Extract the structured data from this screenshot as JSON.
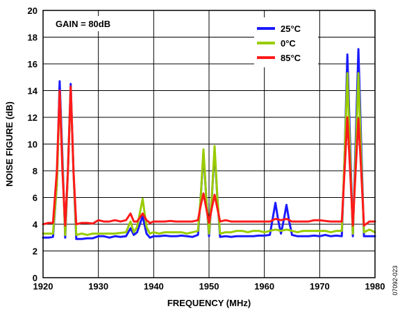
{
  "chart_data": {
    "type": "line",
    "xlabel": "FREQUENCY (MHz)",
    "ylabel": "NOISE FIGURE (dB)",
    "xlim": [
      1920,
      1980
    ],
    "ylim": [
      0,
      20
    ],
    "xticks": [
      1920,
      1930,
      1940,
      1950,
      1960,
      1970,
      1980
    ],
    "yticks": [
      0,
      2,
      4,
      6,
      8,
      10,
      12,
      14,
      16,
      18,
      20
    ],
    "grid": true,
    "legend_position": "top-right",
    "annotation": "GAIN = 80dB",
    "figure_code": "07092-023",
    "series": [
      {
        "name": "25°C",
        "color": "#1a1aff",
        "points": [
          [
            1920,
            3.0
          ],
          [
            1921,
            3.0
          ],
          [
            1921.8,
            3.05
          ],
          [
            1922.5,
            7
          ],
          [
            1923,
            14.7
          ],
          [
            1923.5,
            9
          ],
          [
            1924,
            3.0
          ],
          [
            1924.5,
            8
          ],
          [
            1925,
            14.5
          ],
          [
            1925.5,
            8
          ],
          [
            1926,
            2.9
          ],
          [
            1927,
            2.9
          ],
          [
            1928,
            2.95
          ],
          [
            1929,
            2.95
          ],
          [
            1930,
            3.1
          ],
          [
            1931,
            3.1
          ],
          [
            1932,
            3.0
          ],
          [
            1933,
            3.1
          ],
          [
            1934,
            3.05
          ],
          [
            1935,
            3.1
          ],
          [
            1935.8,
            3.7
          ],
          [
            1936.4,
            3.2
          ],
          [
            1937,
            3.4
          ],
          [
            1938,
            4.6
          ],
          [
            1938.7,
            3.3
          ],
          [
            1939.3,
            3.0
          ],
          [
            1940,
            3.1
          ],
          [
            1941,
            3.1
          ],
          [
            1942,
            3.15
          ],
          [
            1943,
            3.1
          ],
          [
            1944,
            3.1
          ],
          [
            1945,
            3.15
          ],
          [
            1946,
            3.1
          ],
          [
            1947,
            3.05
          ],
          [
            1948,
            3.2
          ],
          [
            1948.5,
            6
          ],
          [
            1949,
            9.3
          ],
          [
            1949.5,
            6
          ],
          [
            1950,
            3.1
          ],
          [
            1950.5,
            6
          ],
          [
            1951,
            9.5
          ],
          [
            1951.5,
            6
          ],
          [
            1952,
            3.05
          ],
          [
            1953,
            3.1
          ],
          [
            1954,
            3.05
          ],
          [
            1955,
            3.1
          ],
          [
            1956,
            3.1
          ],
          [
            1957,
            3.1
          ],
          [
            1958,
            3.1
          ],
          [
            1959,
            3.15
          ],
          [
            1960,
            3.15
          ],
          [
            1961,
            3.2
          ],
          [
            1961.5,
            4.4
          ],
          [
            1962,
            5.6
          ],
          [
            1962.5,
            4.3
          ],
          [
            1963,
            3.3
          ],
          [
            1963.5,
            4.3
          ],
          [
            1964,
            5.45
          ],
          [
            1964.5,
            4.2
          ],
          [
            1965,
            3.2
          ],
          [
            1966,
            3.1
          ],
          [
            1967,
            3.1
          ],
          [
            1968,
            3.1
          ],
          [
            1969,
            3.15
          ],
          [
            1970,
            3.1
          ],
          [
            1971,
            3.2
          ],
          [
            1972,
            3.1
          ],
          [
            1973,
            3.15
          ],
          [
            1974,
            3.1
          ],
          [
            1974.5,
            9
          ],
          [
            1975,
            16.7
          ],
          [
            1975.5,
            10
          ],
          [
            1976,
            3.1
          ],
          [
            1976.5,
            10
          ],
          [
            1977,
            17.1
          ],
          [
            1977.5,
            10
          ],
          [
            1978,
            3.1
          ],
          [
            1979,
            3.1
          ],
          [
            1980,
            3.1
          ]
        ]
      },
      {
        "name": "0°C",
        "color": "#99cc00",
        "points": [
          [
            1920,
            3.3
          ],
          [
            1921,
            3.3
          ],
          [
            1921.8,
            3.3
          ],
          [
            1922.5,
            7
          ],
          [
            1923,
            13.9
          ],
          [
            1923.5,
            8.5
          ],
          [
            1924,
            3.2
          ],
          [
            1924.5,
            8
          ],
          [
            1925,
            14.2
          ],
          [
            1925.5,
            8
          ],
          [
            1926,
            3.2
          ],
          [
            1927,
            3.3
          ],
          [
            1928,
            3.2
          ],
          [
            1929,
            3.3
          ],
          [
            1930,
            3.3
          ],
          [
            1931,
            3.3
          ],
          [
            1932,
            3.3
          ],
          [
            1933,
            3.3
          ],
          [
            1934,
            3.35
          ],
          [
            1935,
            3.4
          ],
          [
            1935.8,
            4.2
          ],
          [
            1936.4,
            3.4
          ],
          [
            1937,
            3.8
          ],
          [
            1938,
            5.9
          ],
          [
            1938.7,
            3.8
          ],
          [
            1939.3,
            3.3
          ],
          [
            1940,
            3.4
          ],
          [
            1941,
            3.3
          ],
          [
            1942,
            3.4
          ],
          [
            1943,
            3.4
          ],
          [
            1944,
            3.4
          ],
          [
            1945,
            3.4
          ],
          [
            1946,
            3.3
          ],
          [
            1947,
            3.4
          ],
          [
            1948,
            3.5
          ],
          [
            1948.5,
            6
          ],
          [
            1949,
            9.6
          ],
          [
            1949.5,
            6
          ],
          [
            1950,
            3.3
          ],
          [
            1950.5,
            6
          ],
          [
            1951,
            9.85
          ],
          [
            1951.5,
            6
          ],
          [
            1952,
            3.3
          ],
          [
            1953,
            3.4
          ],
          [
            1954,
            3.4
          ],
          [
            1955,
            3.5
          ],
          [
            1956,
            3.5
          ],
          [
            1957,
            3.4
          ],
          [
            1958,
            3.5
          ],
          [
            1959,
            3.5
          ],
          [
            1960,
            3.4
          ],
          [
            1961,
            3.5
          ],
          [
            1962,
            3.6
          ],
          [
            1963,
            3.5
          ],
          [
            1964,
            3.6
          ],
          [
            1965,
            3.5
          ],
          [
            1966,
            3.4
          ],
          [
            1967,
            3.5
          ],
          [
            1968,
            3.5
          ],
          [
            1969,
            3.5
          ],
          [
            1970,
            3.5
          ],
          [
            1971,
            3.5
          ],
          [
            1972,
            3.4
          ],
          [
            1973,
            3.5
          ],
          [
            1974,
            3.5
          ],
          [
            1974.5,
            9
          ],
          [
            1975,
            15.3
          ],
          [
            1975.5,
            9
          ],
          [
            1976,
            3.3
          ],
          [
            1976.5,
            9
          ],
          [
            1977,
            15.3
          ],
          [
            1977.5,
            9
          ],
          [
            1978,
            3.4
          ],
          [
            1979,
            3.6
          ],
          [
            1980,
            3.4
          ]
        ]
      },
      {
        "name": "85°C",
        "color": "#ff1a1a",
        "points": [
          [
            1920,
            4.0
          ],
          [
            1921,
            4.1
          ],
          [
            1921.8,
            4.1
          ],
          [
            1922.5,
            8
          ],
          [
            1923,
            14.0
          ],
          [
            1923.5,
            8
          ],
          [
            1924,
            3.9
          ],
          [
            1924.5,
            8
          ],
          [
            1925,
            14.3
          ],
          [
            1925.5,
            8
          ],
          [
            1926,
            4.0
          ],
          [
            1927,
            4.1
          ],
          [
            1928,
            4.1
          ],
          [
            1929,
            4.05
          ],
          [
            1930,
            4.3
          ],
          [
            1931,
            4.2
          ],
          [
            1932,
            4.2
          ],
          [
            1933,
            4.3
          ],
          [
            1934,
            4.2
          ],
          [
            1935,
            4.3
          ],
          [
            1935.8,
            4.8
          ],
          [
            1936.4,
            4.2
          ],
          [
            1937,
            4.2
          ],
          [
            1938,
            4.8
          ],
          [
            1938.7,
            4.3
          ],
          [
            1939.3,
            4.1
          ],
          [
            1940,
            4.2
          ],
          [
            1941,
            4.2
          ],
          [
            1942,
            4.2
          ],
          [
            1943,
            4.25
          ],
          [
            1944,
            4.2
          ],
          [
            1945,
            4.2
          ],
          [
            1946,
            4.2
          ],
          [
            1947,
            4.2
          ],
          [
            1948,
            4.3
          ],
          [
            1948.5,
            5.4
          ],
          [
            1949,
            6.3
          ],
          [
            1949.5,
            5.2
          ],
          [
            1950,
            4.1
          ],
          [
            1950.5,
            5.2
          ],
          [
            1951,
            6.2
          ],
          [
            1951.5,
            5.2
          ],
          [
            1952,
            4.2
          ],
          [
            1953,
            4.3
          ],
          [
            1954,
            4.2
          ],
          [
            1955,
            4.2
          ],
          [
            1956,
            4.2
          ],
          [
            1957,
            4.2
          ],
          [
            1958,
            4.2
          ],
          [
            1959,
            4.2
          ],
          [
            1960,
            4.2
          ],
          [
            1961,
            4.2
          ],
          [
            1962,
            4.4
          ],
          [
            1963,
            4.3
          ],
          [
            1964,
            4.4
          ],
          [
            1965,
            4.2
          ],
          [
            1966,
            4.2
          ],
          [
            1967,
            4.2
          ],
          [
            1968,
            4.2
          ],
          [
            1969,
            4.3
          ],
          [
            1970,
            4.3
          ],
          [
            1971,
            4.25
          ],
          [
            1972,
            4.2
          ],
          [
            1973,
            4.2
          ],
          [
            1974,
            4.2
          ],
          [
            1974.5,
            8
          ],
          [
            1975,
            12.0
          ],
          [
            1975.5,
            8
          ],
          [
            1976,
            3.9
          ],
          [
            1976.5,
            8
          ],
          [
            1977,
            11.9
          ],
          [
            1977.5,
            8
          ],
          [
            1978,
            3.9
          ],
          [
            1979,
            4.2
          ],
          [
            1980,
            4.2
          ]
        ]
      }
    ]
  }
}
